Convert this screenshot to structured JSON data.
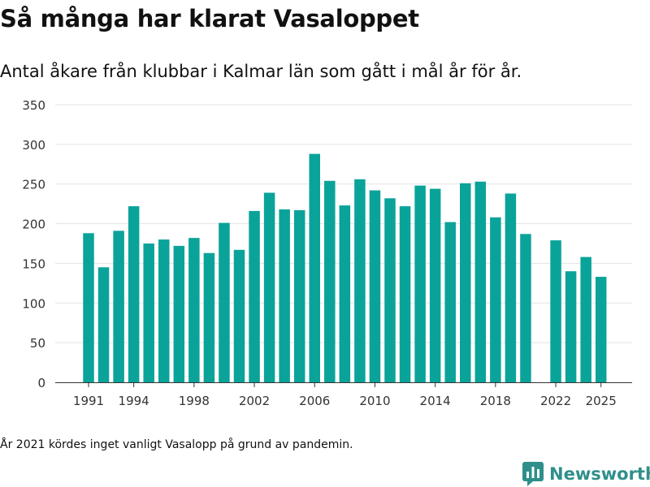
{
  "header": {
    "title": "Så många har klarat Vasaloppet",
    "subtitle": "Antal åkare från klubbar i Kalmar län som gått i mål år för år."
  },
  "footnote": "År 2021 kördes inget vanligt Vasalopp på grund av pandemin.",
  "brand": {
    "name": "Newsworthy",
    "icon": "newsworthy-logo-icon",
    "color": "#2f8f8a"
  },
  "chart_data": {
    "type": "bar",
    "bar_color": "#0aa39a",
    "ylim": [
      0,
      350
    ],
    "y_ticks": [
      0,
      50,
      100,
      150,
      200,
      250,
      300,
      350
    ],
    "x_ticks": [
      1991,
      1994,
      1998,
      2002,
      2006,
      2010,
      2014,
      2018,
      2022,
      2025
    ],
    "grid": true,
    "xlabel": "",
    "ylabel": "",
    "categories": [
      1991,
      1992,
      1993,
      1994,
      1995,
      1996,
      1997,
      1998,
      1999,
      2000,
      2001,
      2002,
      2003,
      2004,
      2005,
      2006,
      2007,
      2008,
      2009,
      2010,
      2011,
      2012,
      2013,
      2014,
      2015,
      2016,
      2017,
      2018,
      2019,
      2020,
      2021,
      2022,
      2023,
      2024,
      2025
    ],
    "values": [
      188,
      145,
      191,
      222,
      175,
      180,
      172,
      182,
      163,
      201,
      167,
      216,
      239,
      218,
      217,
      288,
      254,
      223,
      256,
      242,
      232,
      222,
      248,
      244,
      202,
      251,
      253,
      208,
      238,
      187,
      null,
      179,
      140,
      158,
      133
    ]
  }
}
